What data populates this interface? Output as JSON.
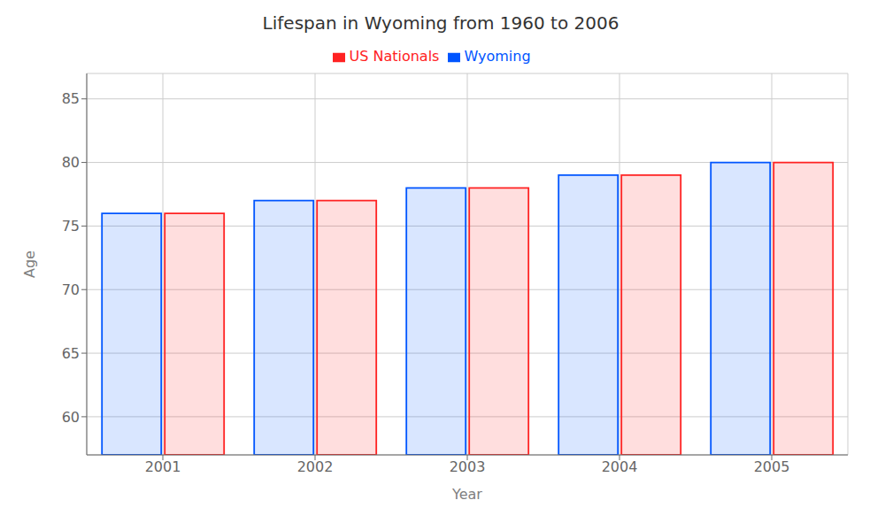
{
  "chart_data": {
    "type": "bar",
    "title": "Lifespan in Wyoming from 1960 to 2006",
    "x_label": "Year",
    "y_label": "Age",
    "categories": [
      "2001",
      "2002",
      "2003",
      "2004",
      "2005"
    ],
    "series": [
      {
        "name": "Wyoming",
        "color": "#0055ff",
        "values": [
          76,
          77,
          78,
          79,
          80
        ]
      },
      {
        "name": "US Nationals",
        "color": "#ff2222",
        "values": [
          76,
          77,
          78,
          79,
          80
        ]
      }
    ],
    "ylim": [
      57,
      87
    ],
    "yticks": [
      60,
      65,
      70,
      75,
      80,
      85
    ],
    "grid": true,
    "legend": "top"
  }
}
